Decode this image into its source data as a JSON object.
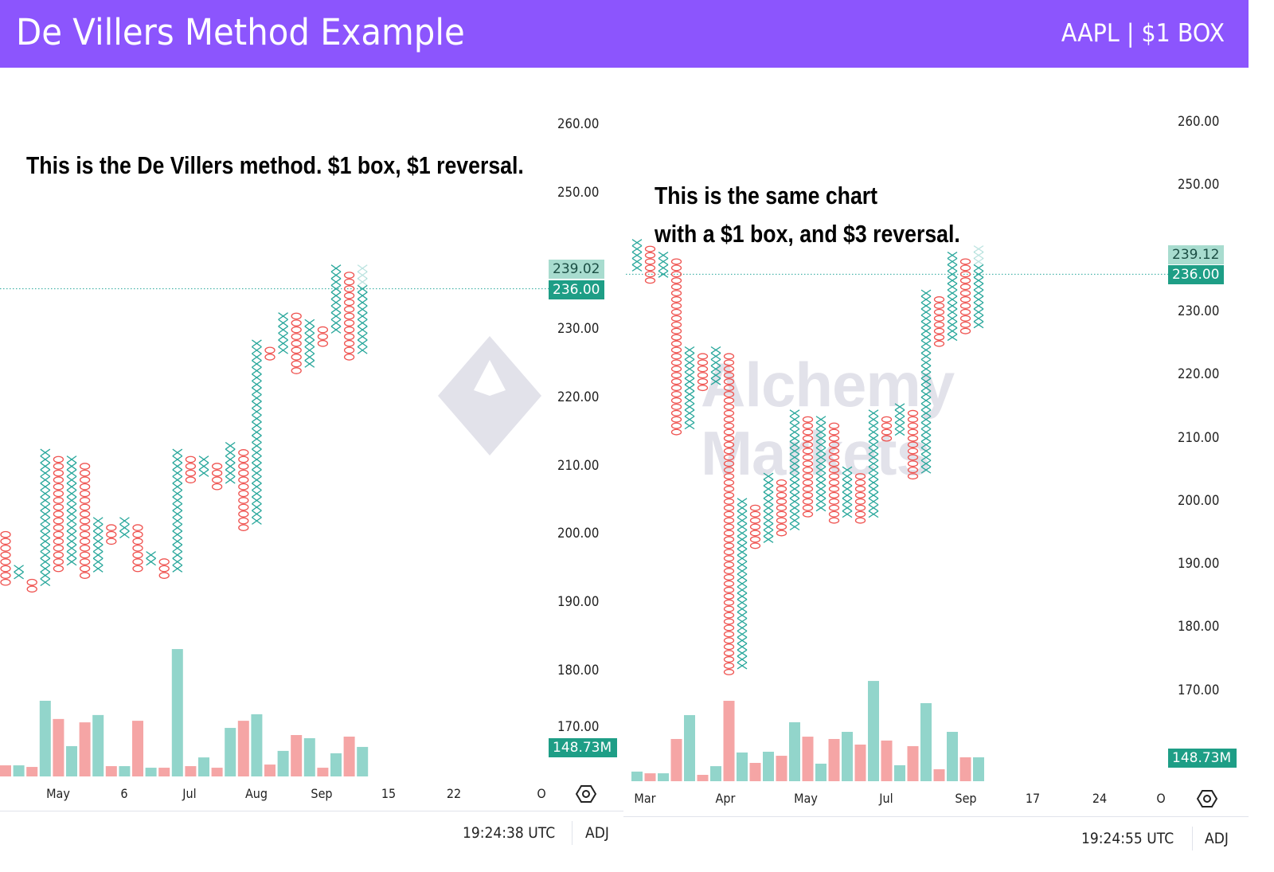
{
  "header": {
    "title": "De Villers Method Example",
    "subtitle": "AAPL | $1 BOX"
  },
  "watermark": {
    "line1": "Alchemy",
    "line2": "Markets"
  },
  "colors": {
    "header": "#8c55fd",
    "x_col": "#26a69a",
    "o_col": "#ef5350",
    "vol_up": "#92d5cb",
    "vol_down": "#f5a5a5",
    "tag_light": "#a8dccf",
    "tag_dark": "#1e9e86"
  },
  "left": {
    "note": "This is the De Villers method. $1 box, $1 reversal.",
    "tag_high": "239.02",
    "tag_last": "236.00",
    "tag_volume": "148.73M",
    "hidden_tick": "170.00",
    "footer_time": "19:24:38 UTC",
    "footer_adj": "ADJ"
  },
  "right": {
    "note_line1": "This is the same chart",
    "note_line2": "with a $1 box, and $3 reversal.",
    "tag_high": "239.12",
    "tag_last": "236.00",
    "tag_volume": "148.73M",
    "footer_time": "19:24:55 UTC",
    "footer_adj": "ADJ"
  },
  "chart_data": [
    {
      "type": "point-and-figure",
      "title": "AAPL $1 box, $1 reversal",
      "box_size": 1,
      "reversal": 1,
      "y_ticks": [
        "260.00",
        "250.00",
        "230.00",
        "220.00",
        "210.00",
        "200.00",
        "190.00",
        "180.00"
      ],
      "y_tick_values": [
        260,
        250,
        230,
        220,
        210,
        200,
        190,
        180
      ],
      "x_ticks": [
        "May",
        "6",
        "Jul",
        "Aug",
        "Sep",
        "15",
        "22",
        "O"
      ],
      "last_price": 236,
      "last_column_pending_boxes": 3,
      "columns": [
        {
          "t": "O",
          "lo": 193,
          "hi": 200
        },
        {
          "t": "X",
          "lo": 194,
          "hi": 195
        },
        {
          "t": "O",
          "lo": 192,
          "hi": 193
        },
        {
          "t": "X",
          "lo": 193,
          "hi": 212
        },
        {
          "t": "O",
          "lo": 195,
          "hi": 211
        },
        {
          "t": "X",
          "lo": 196,
          "hi": 211
        },
        {
          "t": "O",
          "lo": 194,
          "hi": 210
        },
        {
          "t": "X",
          "lo": 195,
          "hi": 202
        },
        {
          "t": "O",
          "lo": 199,
          "hi": 201
        },
        {
          "t": "X",
          "lo": 200,
          "hi": 202
        },
        {
          "t": "O",
          "lo": 195,
          "hi": 201
        },
        {
          "t": "X",
          "lo": 196,
          "hi": 197
        },
        {
          "t": "O",
          "lo": 194,
          "hi": 196
        },
        {
          "t": "X",
          "lo": 195,
          "hi": 212
        },
        {
          "t": "O",
          "lo": 208,
          "hi": 211
        },
        {
          "t": "X",
          "lo": 209,
          "hi": 211
        },
        {
          "t": "O",
          "lo": 207,
          "hi": 210
        },
        {
          "t": "X",
          "lo": 208,
          "hi": 213
        },
        {
          "t": "O",
          "lo": 201,
          "hi": 212
        },
        {
          "t": "X",
          "lo": 202,
          "hi": 228
        },
        {
          "t": "O",
          "lo": 226,
          "hi": 227
        },
        {
          "t": "X",
          "lo": 227,
          "hi": 232
        },
        {
          "t": "O",
          "lo": 224,
          "hi": 232
        },
        {
          "t": "X",
          "lo": 225,
          "hi": 231
        },
        {
          "t": "O",
          "lo": 228,
          "hi": 230
        },
        {
          "t": "X",
          "lo": 230,
          "hi": 239
        },
        {
          "t": "O",
          "lo": 226,
          "hi": 238
        },
        {
          "t": "X",
          "lo": 227,
          "hi": 239
        }
      ],
      "volume_millions": [
        56,
        56,
        48,
        382,
        290,
        153,
        273,
        310,
        52,
        52,
        281,
        44,
        44,
        643,
        52,
        96,
        44,
        245,
        281,
        314,
        60,
        129,
        209,
        193,
        44,
        117,
        201,
        149
      ]
    },
    {
      "type": "point-and-figure",
      "title": "AAPL $1 box, $3 reversal",
      "box_size": 1,
      "reversal": 3,
      "y_ticks": [
        "260.00",
        "250.00",
        "230.00",
        "220.00",
        "210.00",
        "200.00",
        "190.00",
        "180.00",
        "170.00"
      ],
      "y_tick_values": [
        260,
        250,
        230,
        220,
        210,
        200,
        190,
        180,
        170
      ],
      "x_ticks": [
        "Mar",
        "Apr",
        "May",
        "Jul",
        "Sep",
        "17",
        "24",
        "O"
      ],
      "last_price": 236,
      "last_column_pending_boxes": 3,
      "columns": [
        {
          "t": "X",
          "lo": 237,
          "hi": 241
        },
        {
          "t": "O",
          "lo": 235,
          "hi": 240
        },
        {
          "t": "X",
          "lo": 236,
          "hi": 239
        },
        {
          "t": "O",
          "lo": 211,
          "hi": 238
        },
        {
          "t": "X",
          "lo": 212,
          "hi": 224
        },
        {
          "t": "O",
          "lo": 218,
          "hi": 223
        },
        {
          "t": "X",
          "lo": 219,
          "hi": 224
        },
        {
          "t": "O",
          "lo": 173,
          "hi": 223
        },
        {
          "t": "X",
          "lo": 174,
          "hi": 200
        },
        {
          "t": "O",
          "lo": 193,
          "hi": 199
        },
        {
          "t": "X",
          "lo": 194,
          "hi": 204
        },
        {
          "t": "O",
          "lo": 195,
          "hi": 203
        },
        {
          "t": "X",
          "lo": 196,
          "hi": 214
        },
        {
          "t": "O",
          "lo": 198,
          "hi": 213
        },
        {
          "t": "X",
          "lo": 199,
          "hi": 213
        },
        {
          "t": "O",
          "lo": 197,
          "hi": 212
        },
        {
          "t": "X",
          "lo": 198,
          "hi": 205
        },
        {
          "t": "O",
          "lo": 197,
          "hi": 204
        },
        {
          "t": "X",
          "lo": 198,
          "hi": 214
        },
        {
          "t": "O",
          "lo": 210,
          "hi": 213
        },
        {
          "t": "X",
          "lo": 211,
          "hi": 215
        },
        {
          "t": "O",
          "lo": 204,
          "hi": 214
        },
        {
          "t": "X",
          "lo": 205,
          "hi": 233
        },
        {
          "t": "O",
          "lo": 225,
          "hi": 232
        },
        {
          "t": "X",
          "lo": 226,
          "hi": 239
        },
        {
          "t": "O",
          "lo": 227,
          "hi": 238
        },
        {
          "t": "X",
          "lo": 228,
          "hi": 240
        }
      ],
      "volume_millions": [
        62,
        51,
        51,
        272,
        426,
        41,
        97,
        518,
        185,
        118,
        190,
        164,
        380,
        287,
        113,
        272,
        318,
        236,
        646,
        262,
        103,
        226,
        503,
        77,
        318,
        154,
        154
      ]
    }
  ]
}
